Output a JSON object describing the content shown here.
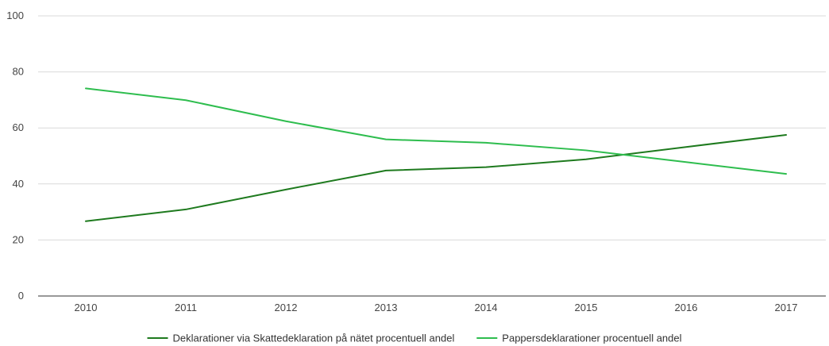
{
  "chart_data": {
    "type": "line",
    "title": "",
    "xlabel": "",
    "ylabel": "",
    "x": [
      "2010",
      "2011",
      "2012",
      "2013",
      "2014",
      "2015",
      "2016",
      "2017"
    ],
    "ylim": [
      0,
      100
    ],
    "yticks": [
      0,
      20,
      40,
      60,
      80,
      100
    ],
    "grid": true,
    "legend_position": "bottom",
    "series": [
      {
        "name": "Deklarationer via Skattedeklaration på nätet procentuell andel",
        "color": "#1e7a1e",
        "values": [
          26.7,
          30.9,
          38.0,
          44.8,
          46.0,
          48.8,
          53.2,
          57.5
        ]
      },
      {
        "name": "Pappersdeklarationer procentuell andel",
        "color": "#2ebd4e",
        "values": [
          74.1,
          69.9,
          62.4,
          55.9,
          54.7,
          52.0,
          47.8,
          43.6
        ]
      }
    ]
  }
}
